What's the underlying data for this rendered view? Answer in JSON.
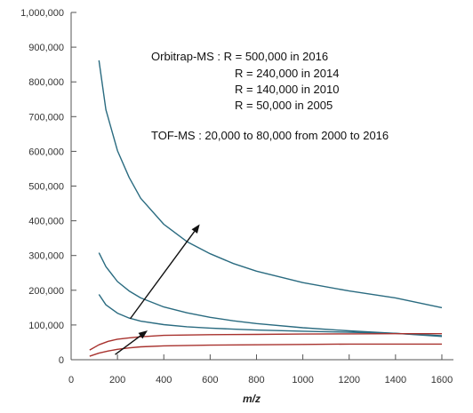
{
  "chart_data": {
    "type": "line",
    "title": "",
    "xlabel": "m/z",
    "ylabel": "",
    "xlim": [
      0,
      1650
    ],
    "ylim": [
      0,
      1000000
    ],
    "x_ticks": [
      0,
      200,
      400,
      600,
      800,
      1000,
      1200,
      1400,
      1600
    ],
    "x_tick_labels": [
      "0",
      "200",
      "400",
      "600",
      "800",
      "1000",
      "1200",
      "1400",
      "1600"
    ],
    "y_ticks": [
      0,
      100000,
      200000,
      300000,
      400000,
      500000,
      600000,
      700000,
      800000,
      900000,
      1000000
    ],
    "y_tick_labels": [
      "0",
      "100,000",
      "200,000",
      "300,000",
      "400,000",
      "500,000",
      "600,000",
      "700,000",
      "800,000",
      "900,000",
      "1,000,000"
    ],
    "grid": false,
    "colors": {
      "orbitrap": "#2a6b80",
      "tof": "#a8322e",
      "arrow": "#111111",
      "axis": "#555555"
    },
    "series": [
      {
        "group": "orbitrap",
        "x": [
          120,
          150,
          200,
          250,
          300,
          400,
          500,
          600,
          700,
          800,
          1000,
          1200,
          1400,
          1600
        ],
        "values": [
          862000,
          720000,
          602000,
          525000,
          465000,
          390000,
          340000,
          305000,
          277000,
          255000,
          222000,
          198000,
          178000,
          150000
        ]
      },
      {
        "group": "orbitrap",
        "x": [
          120,
          150,
          200,
          250,
          300,
          400,
          500,
          600,
          700,
          800,
          1000,
          1200,
          1400,
          1600
        ],
        "values": [
          308000,
          268000,
          225000,
          198000,
          178000,
          152000,
          135000,
          122000,
          112000,
          104000,
          92000,
          83000,
          76000,
          67000
        ]
      },
      {
        "group": "orbitrap",
        "x": [
          120,
          150,
          200,
          250,
          300,
          400,
          500,
          600,
          700,
          800,
          1000,
          1200,
          1400,
          1600
        ],
        "values": [
          188000,
          158000,
          134000,
          120000,
          111000,
          101000,
          95000,
          91000,
          88000,
          85500,
          82000,
          79000,
          76000,
          69000
        ]
      },
      {
        "group": "tof",
        "x": [
          80,
          120,
          160,
          200,
          250,
          300,
          400,
          600,
          800,
          1000,
          1200,
          1400,
          1600
        ],
        "values": [
          28000,
          43000,
          53000,
          59000,
          63000,
          66000,
          70000,
          72000,
          73000,
          74000,
          74500,
          75000,
          75000
        ]
      },
      {
        "group": "tof",
        "x": [
          80,
          120,
          160,
          200,
          250,
          300,
          400,
          600,
          800,
          1000,
          1200,
          1400,
          1600
        ],
        "values": [
          10000,
          19000,
          25000,
          30000,
          34000,
          37000,
          40000,
          42000,
          43000,
          44000,
          45000,
          45000,
          45000
        ]
      }
    ],
    "arrows": [
      {
        "from": [
          255,
          118000
        ],
        "to": [
          555,
          390000
        ]
      },
      {
        "from": [
          190,
          15000
        ],
        "to": [
          330,
          84000
        ]
      }
    ],
    "annotations": {
      "orbitrap_lines": [
        "Orbitrap-MS : R = 500,000 in 2016",
        "R = 240,000 in 2014",
        "R = 140,000 in 2010",
        "R = 50,000 in 2005"
      ],
      "tof_line": "TOF-MS : 20,000 to 80,000 from 2000 to 2016"
    }
  }
}
